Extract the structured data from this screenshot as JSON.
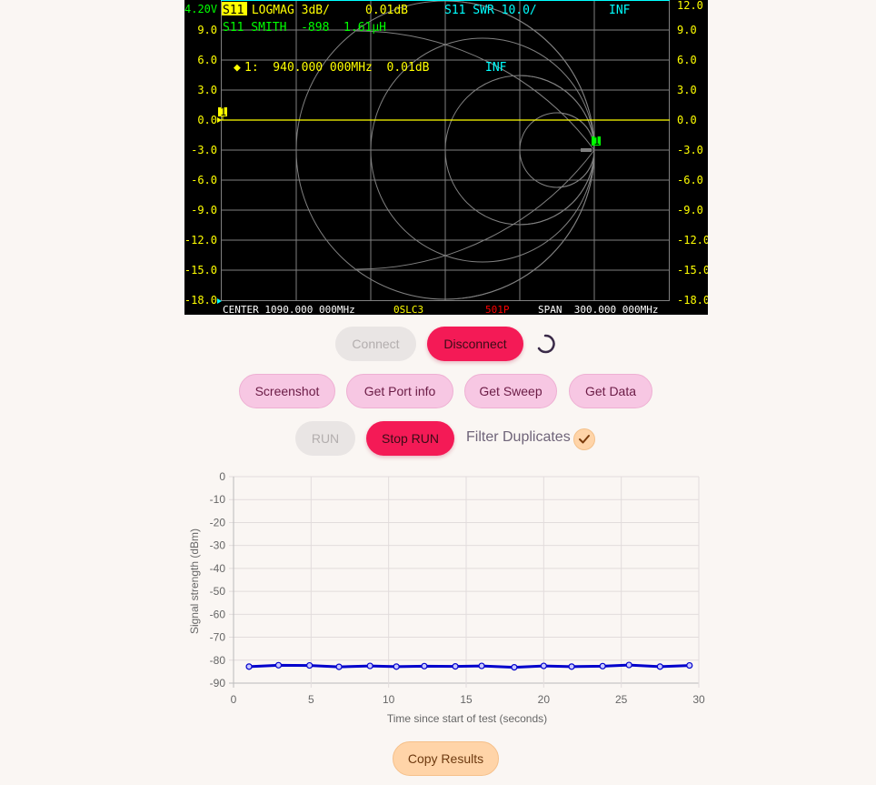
{
  "vna": {
    "voltage": "4.20V",
    "ch1_badge": "S11",
    "ch1_rest": " LOGMAG 3dB/     0.01dB",
    "ch2": "S11 SWR 10.0/",
    "ch2_val": "INF",
    "ch3": "S11 SMITH  -898  1.61µH",
    "marker": "◆",
    "marker_line": "1:  940.000 000MHz  0.01dB",
    "marker_inf": "INF",
    "left_ticks": [
      "9.0",
      "6.0",
      "3.0",
      "0.0",
      "-3.0",
      "-6.0",
      "-9.0",
      "-12.0",
      "-15.0",
      "-18.0"
    ],
    "right_ticks": [
      "12.0",
      "9.0",
      "6.0",
      "3.0",
      "0.0",
      "-3.0",
      "-6.0",
      "-9.0",
      "-12.0",
      "-15.0",
      "-18.0"
    ],
    "center": "CENTER 1090.000 000MHz",
    "cal": "0SLC3",
    "points": "501P",
    "span": "SPAN  300.000 000MHz",
    "marker_flag": "1",
    "colors": {
      "yellow": "#ffff00",
      "cyan": "#00ffff",
      "green": "#00ff00",
      "grid": "#808080",
      "red": "#ff0000"
    }
  },
  "controls": {
    "connect": "Connect",
    "disconnect": "Disconnect",
    "screenshot": "Screenshot",
    "port_info": "Get Port info",
    "sweep": "Get Sweep",
    "data": "Get Data",
    "run": "RUN",
    "stop_run": "Stop RUN",
    "filter_label": "Filter Duplicates",
    "filter_checked": true,
    "copy": "Copy Results"
  },
  "chart_data": {
    "type": "line",
    "xlabel": "Time since start of test (seconds)",
    "ylabel": "Signal strength (dBm)",
    "xlim": [
      0,
      30
    ],
    "ylim": [
      -90,
      0
    ],
    "xticks": [
      "0",
      "5",
      "10",
      "15",
      "20",
      "25",
      "30"
    ],
    "yticks": [
      "0",
      "-10",
      "-20",
      "-30",
      "-40",
      "-50",
      "-60",
      "-70",
      "-80",
      "-90"
    ],
    "grid": true,
    "series": [
      {
        "color": "#0000cc",
        "x": [
          1.0,
          2.9,
          4.9,
          6.8,
          8.8,
          10.5,
          12.3,
          14.3,
          16.0,
          18.1,
          20.0,
          21.8,
          23.8,
          25.5,
          27.5,
          29.4
        ],
        "y": [
          -82.8,
          -82.2,
          -82.3,
          -82.9,
          -82.5,
          -82.8,
          -82.6,
          -82.7,
          -82.5,
          -83.1,
          -82.5,
          -82.8,
          -82.6,
          -82.1,
          -82.8,
          -82.3
        ]
      }
    ]
  }
}
